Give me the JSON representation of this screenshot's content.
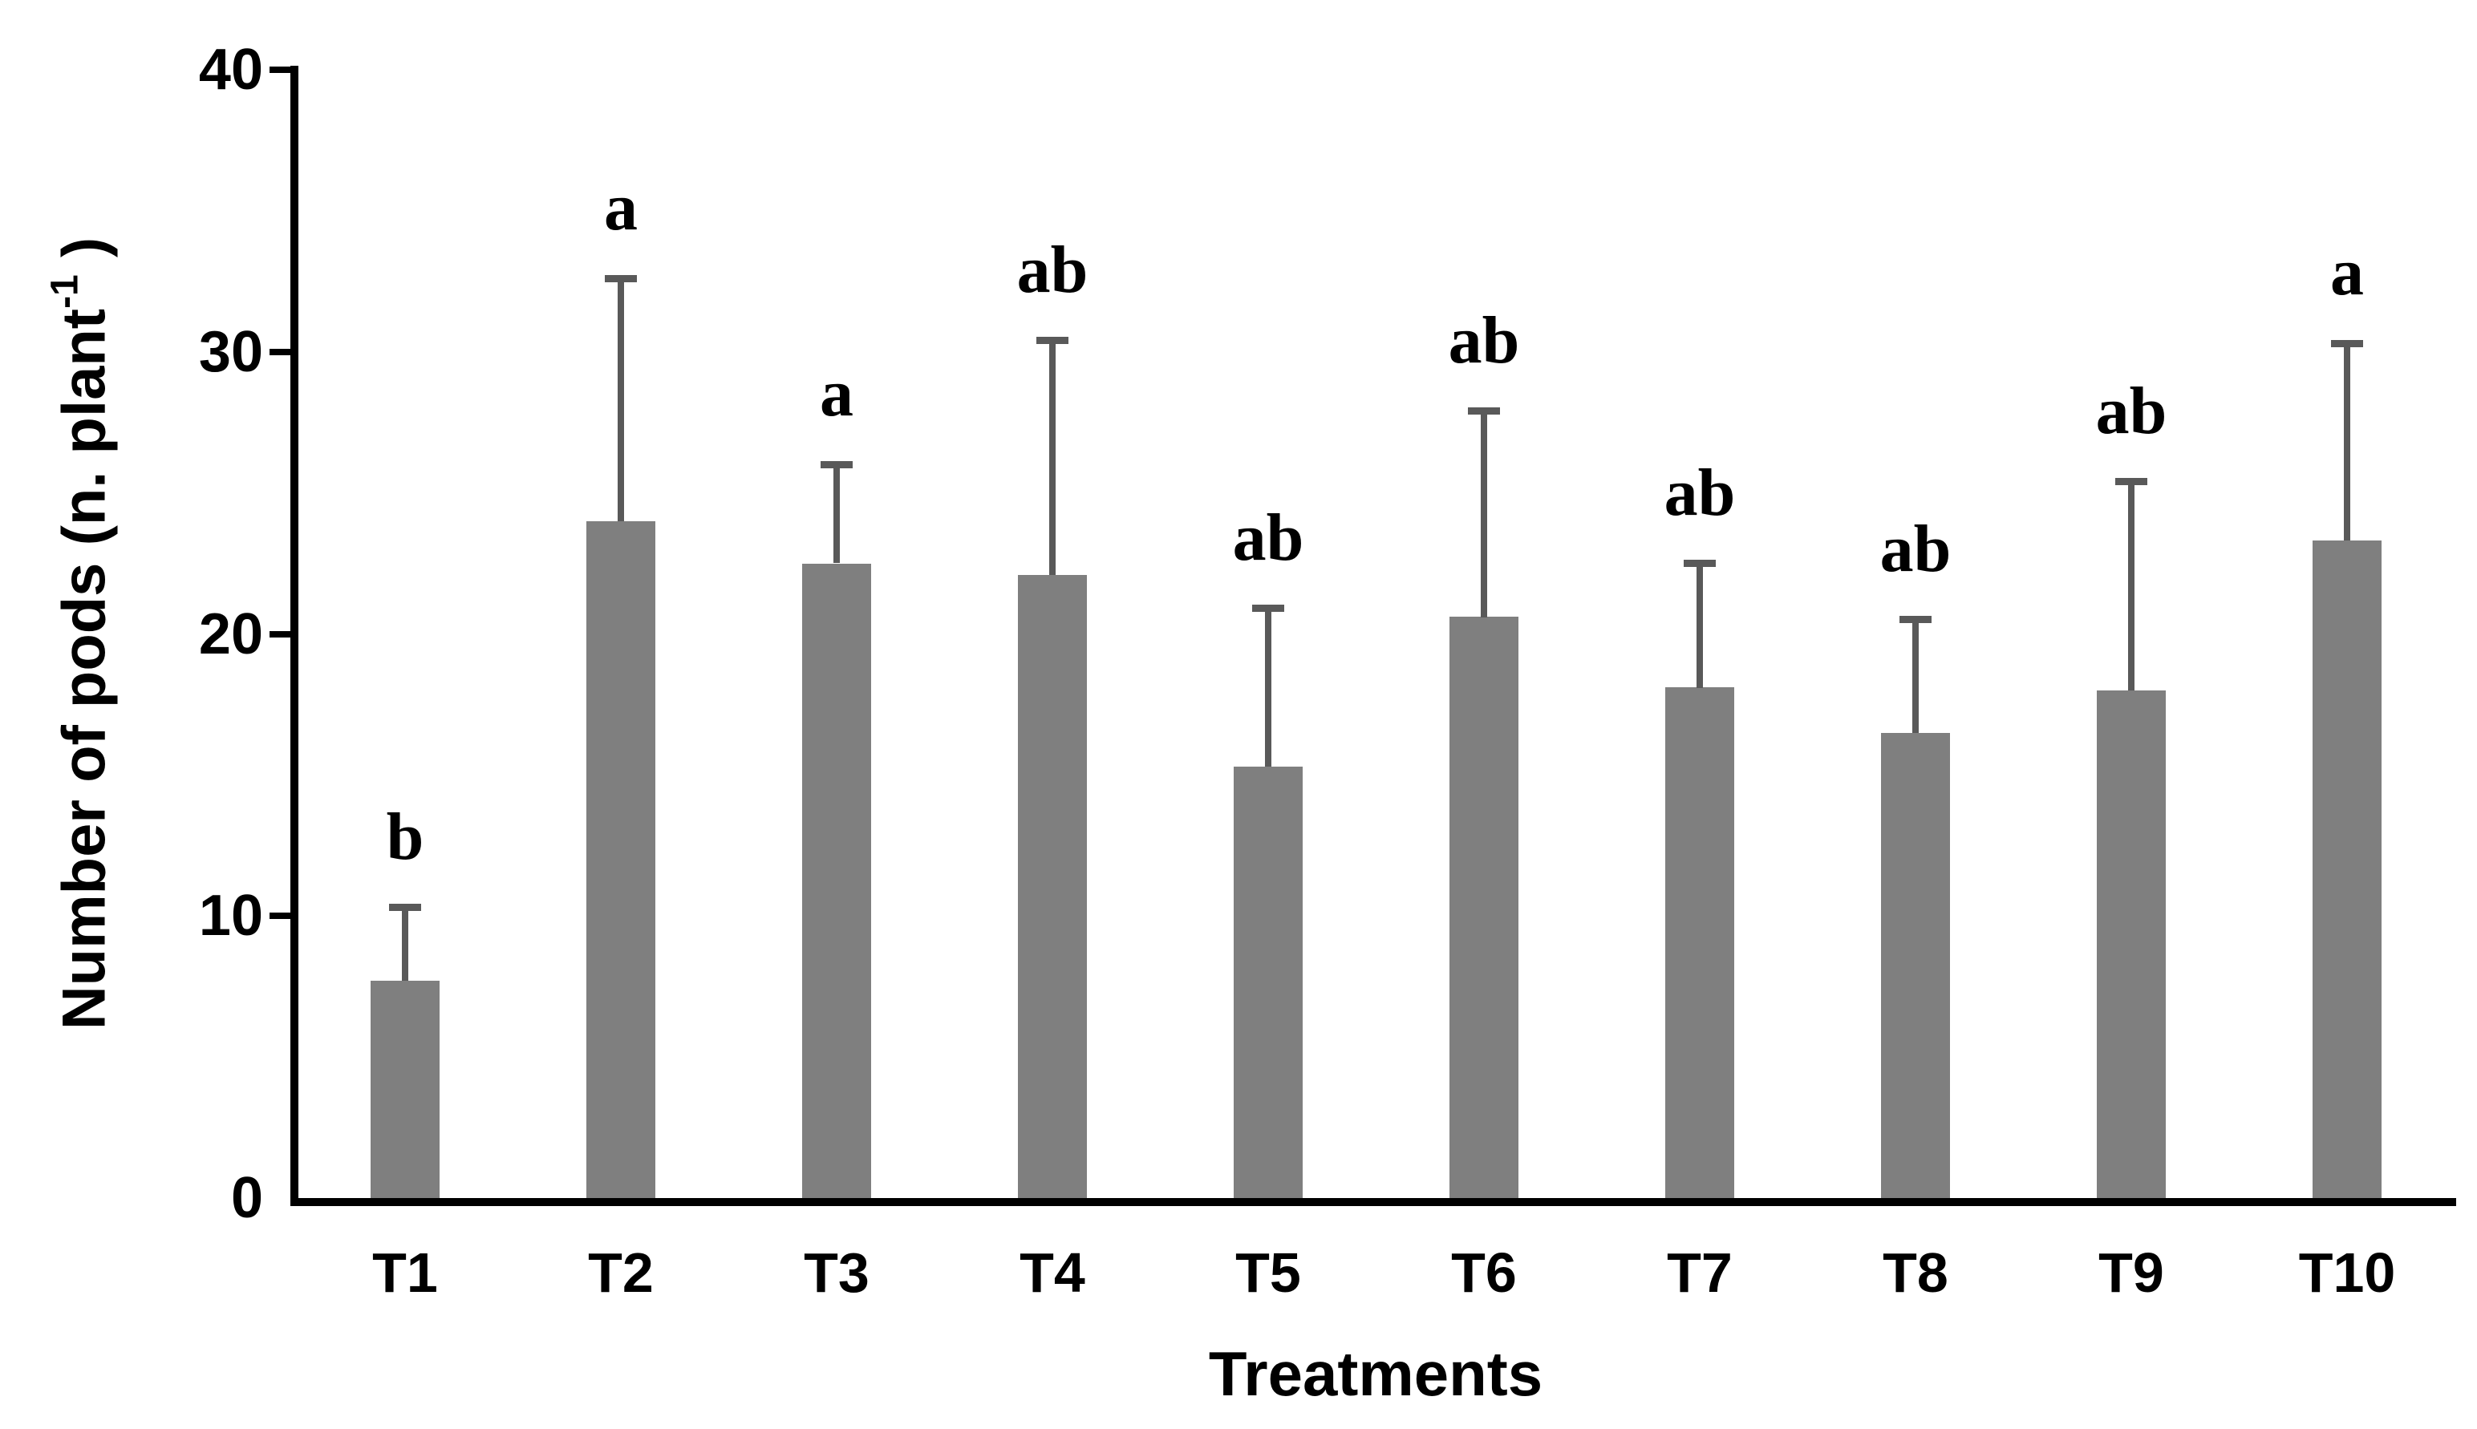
{
  "chart_data": {
    "type": "bar",
    "title": "",
    "categories": [
      "T1",
      "T2",
      "T3",
      "T4",
      "T5",
      "T6",
      "T7",
      "T8",
      "T9",
      "T10"
    ],
    "values": [
      7.7,
      24.0,
      22.5,
      22.1,
      15.3,
      20.6,
      18.1,
      16.5,
      18.0,
      23.3
    ],
    "error_upper": [
      2.6,
      8.6,
      3.5,
      8.3,
      5.6,
      7.3,
      4.4,
      4.0,
      7.4,
      7.0
    ],
    "sig_letters": [
      "b",
      "a",
      "a",
      "ab",
      "ab",
      "ab",
      "ab",
      "ab",
      "ab",
      "a"
    ],
    "xlabel": "Treatments",
    "ylabel_prefix": "Number of pods (n. plant",
    "ylabel_superscript": "-1",
    "ylabel_suffix": " )",
    "yticks": [
      0,
      10,
      20,
      30,
      40
    ],
    "ylim": [
      0,
      40
    ],
    "grid": false,
    "legend": null
  },
  "colors": {
    "bar_fill": "#7F7F7F",
    "error_bar": "#595959",
    "axis": "#000000",
    "text": "#000000",
    "background": "#FFFFFF"
  }
}
